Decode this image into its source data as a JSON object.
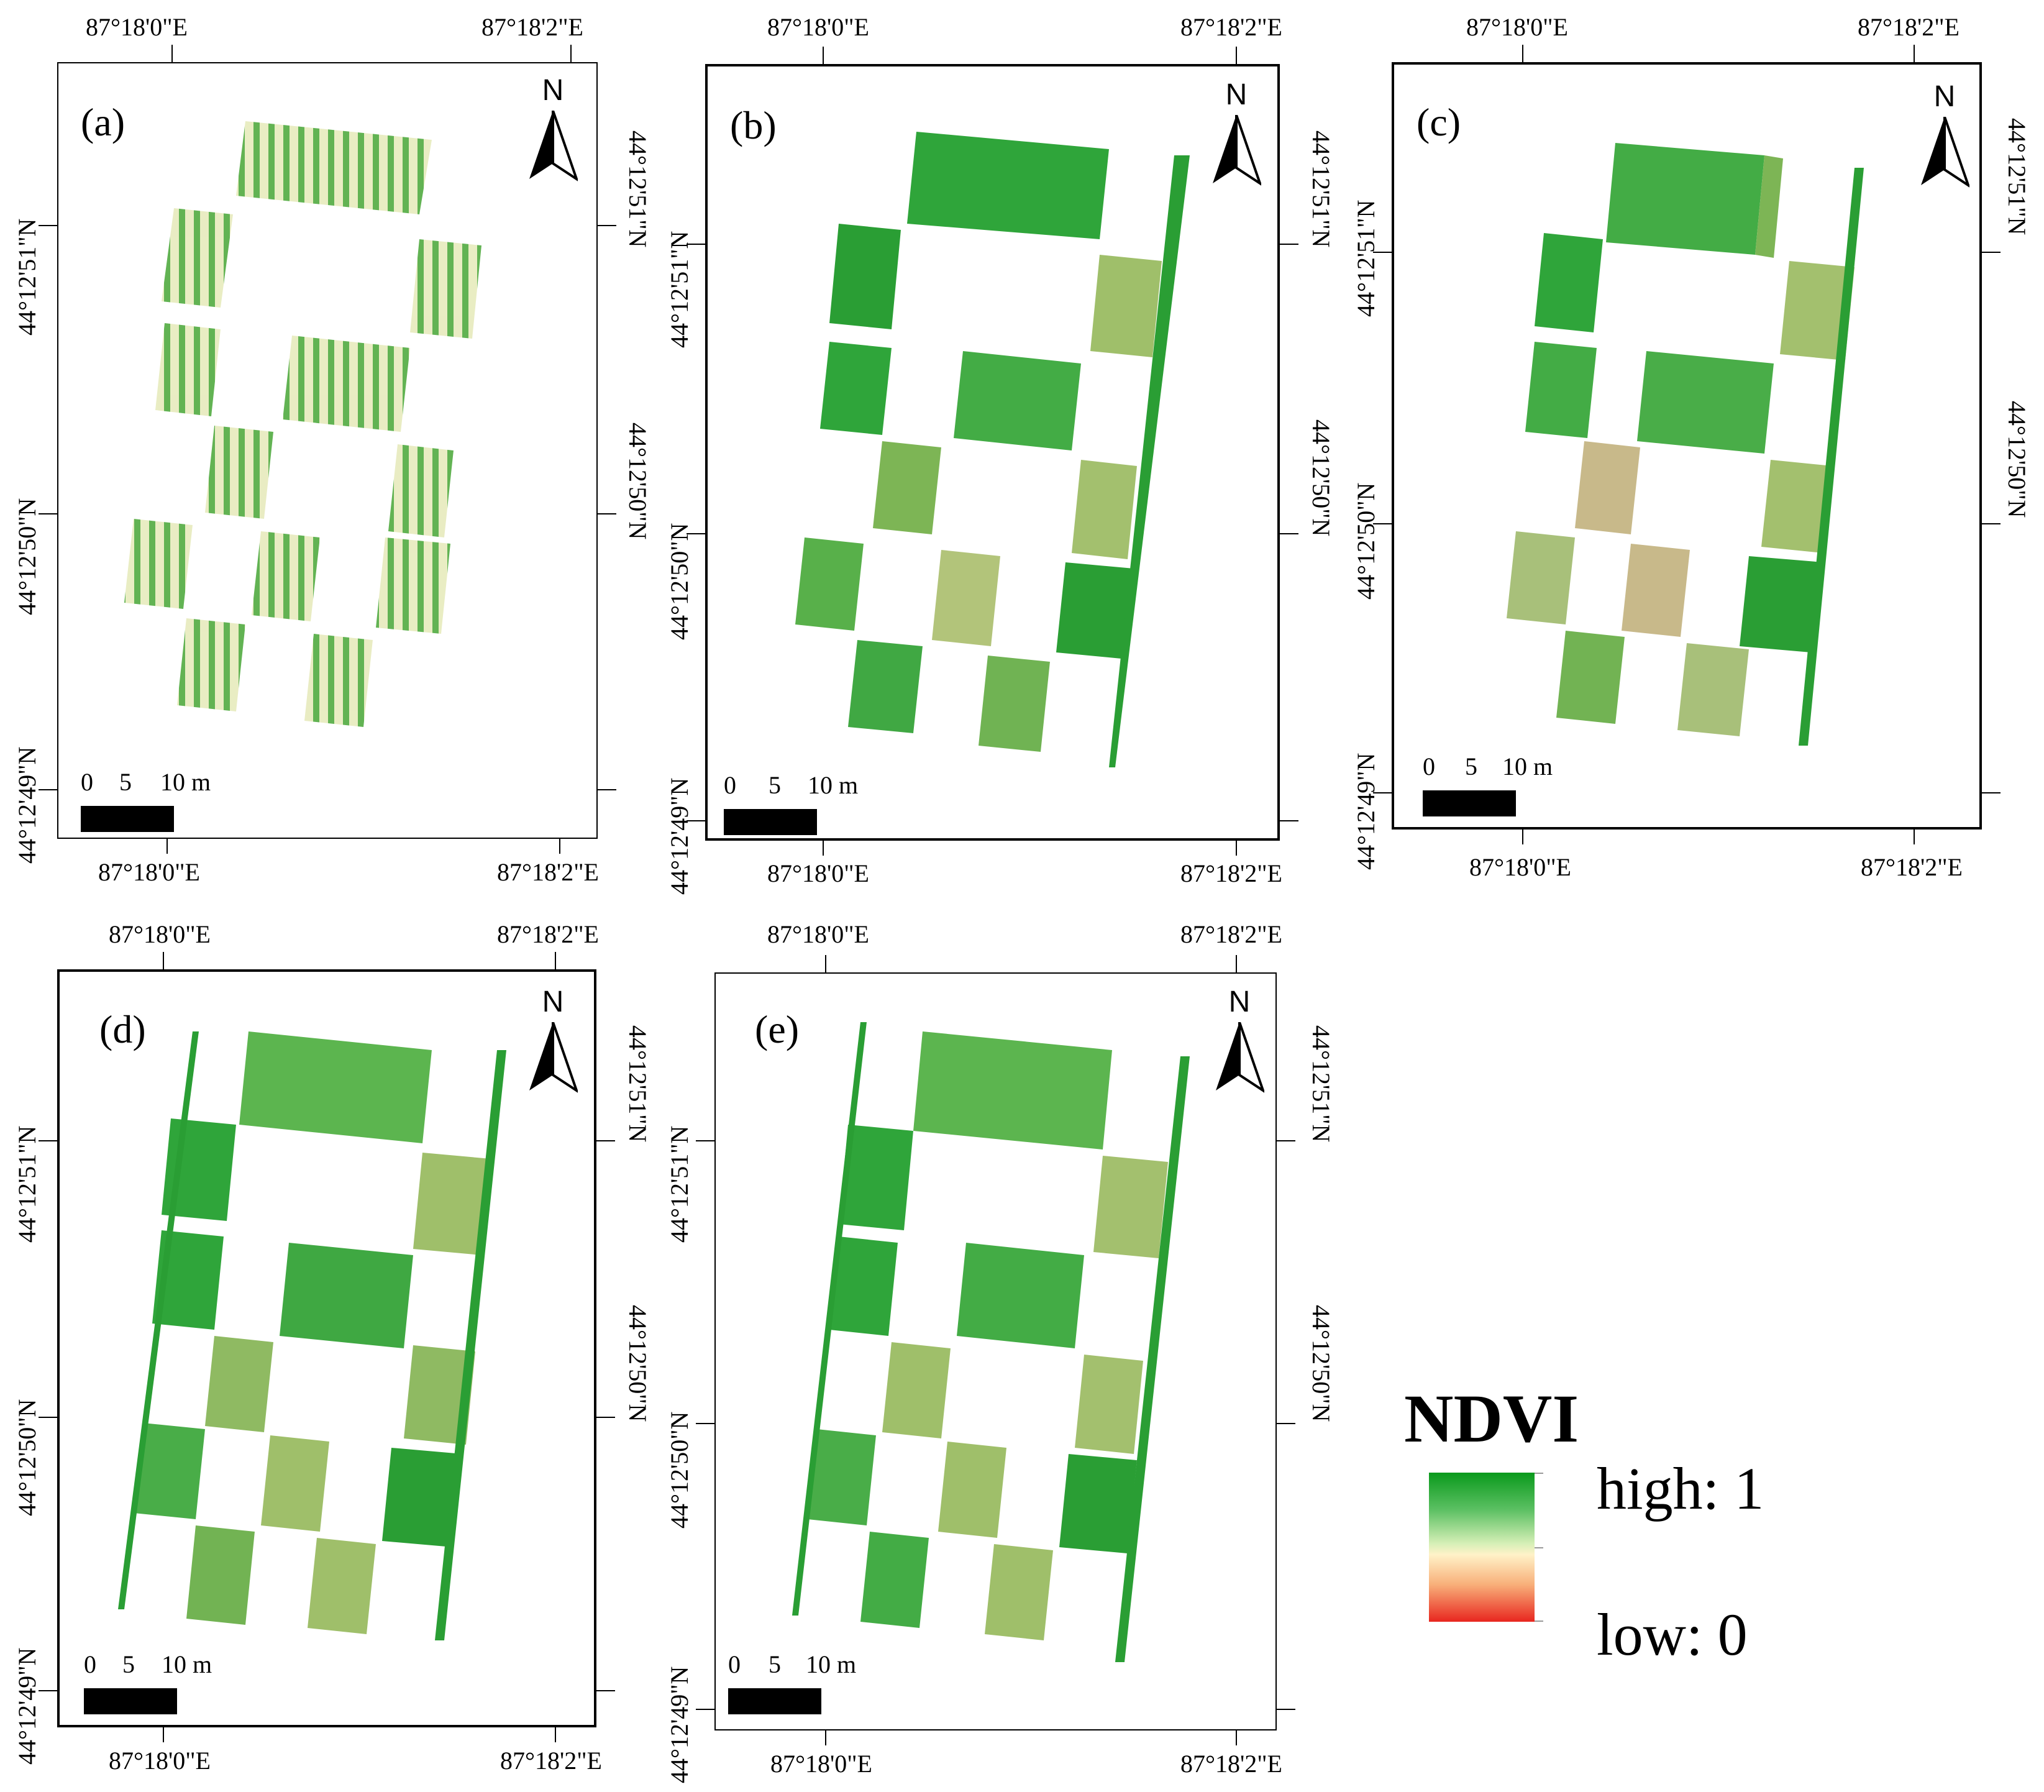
{
  "panels": [
    {
      "id": "a",
      "label": "(a)",
      "lon_left": "87°18'0\"E",
      "lon_right": "87°18'2\"E",
      "lat_top": "44°12'51\"N",
      "lat_mid": "44°12'50\"N",
      "lat_bot": "44°12'49\"N"
    },
    {
      "id": "b",
      "label": "(b)",
      "lon_left": "87°18'0\"E",
      "lon_right": "87°18'2\"E",
      "lat_top": "44°12'51\"N",
      "lat_mid": "44°12'50\"N",
      "lat_bot": "44°12'49\"N"
    },
    {
      "id": "c",
      "label": "(c)",
      "lon_left": "87°18'0\"E",
      "lon_right": "87°18'2\"E",
      "lat_top": "44°12'51\"N",
      "lat_mid": "44°12'50\"N",
      "lat_bot": "44°12'49\"N"
    },
    {
      "id": "d",
      "label": "(d)",
      "lon_left": "87°18'0\"E",
      "lon_right": "87°18'2\"E",
      "lat_top": "44°12'51\"N",
      "lat_mid": "44°12'50\"N",
      "lat_bot": "44°12'49\"N"
    },
    {
      "id": "e",
      "label": "(e)",
      "lon_left": "87°18'0\"E",
      "lon_right": "87°18'2\"E",
      "lat_top": "44°12'51\"N",
      "lat_mid": "44°12'50\"N",
      "lat_bot": "44°12'49\"N"
    }
  ],
  "north_letter": "N",
  "scale_bar": {
    "zero": "0",
    "five": "5",
    "ten": "10 m"
  },
  "legend": {
    "title": "NDVI",
    "high": "high: 1",
    "low": "low: 0"
  },
  "colors": {
    "high": "#0a9a1c",
    "mid": "#fff2c8",
    "low": "#e8261f"
  }
}
